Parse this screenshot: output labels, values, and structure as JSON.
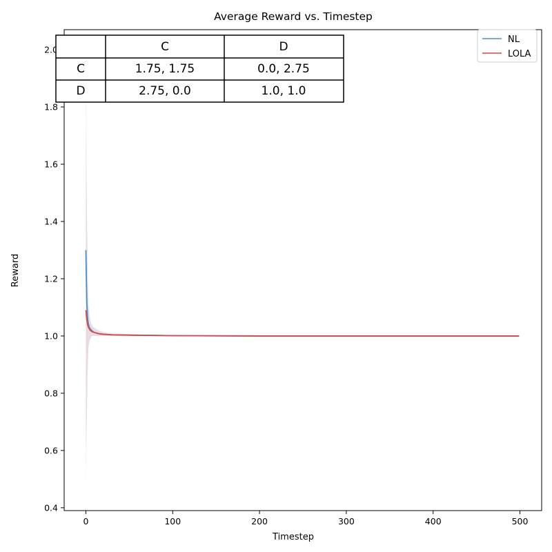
{
  "chart_data": {
    "type": "line",
    "title": "Average Reward vs. Timestep",
    "xlabel": "Timestep",
    "ylabel": "Reward",
    "xlim": [
      -25,
      525
    ],
    "ylim": [
      0.39,
      2.07
    ],
    "xticks": [
      0,
      100,
      200,
      300,
      400,
      500
    ],
    "yticks": [
      0.4,
      0.6,
      0.8,
      1.0,
      1.2,
      1.4,
      1.6,
      1.8,
      2.0
    ],
    "grid": false,
    "legend": {
      "position": "top-right",
      "entries": [
        "NL",
        "LOLA"
      ]
    },
    "series": [
      {
        "name": "NL",
        "color": "#4c8ec9",
        "x": [
          0,
          1,
          2,
          3,
          4,
          5,
          7,
          10,
          15,
          20,
          30,
          50,
          100,
          200,
          300,
          400,
          499
        ],
        "y": [
          1.3,
          1.12,
          1.06,
          1.04,
          1.03,
          1.025,
          1.018,
          1.012,
          1.008,
          1.006,
          1.004,
          1.003,
          1.001,
          1.0,
          1.0,
          1.0,
          1.0
        ],
        "band_upper": [
          2.0,
          1.55,
          1.25,
          1.12,
          1.08,
          1.06,
          1.04,
          1.03,
          1.02,
          1.015,
          1.01,
          1.006,
          1.003,
          1.001,
          1.001,
          1.001,
          1.001
        ],
        "band_lower": [
          0.6,
          0.7,
          0.87,
          0.96,
          0.98,
          0.99,
          1.0,
          1.0,
          1.0,
          1.0,
          1.0,
          1.0,
          1.0,
          0.999,
          0.999,
          0.999,
          0.999
        ]
      },
      {
        "name": "LOLA",
        "color": "#d9474a",
        "x": [
          0,
          1,
          2,
          3,
          4,
          5,
          7,
          10,
          15,
          20,
          30,
          50,
          100,
          200,
          300,
          400,
          499
        ],
        "y": [
          1.09,
          1.06,
          1.04,
          1.03,
          1.025,
          1.02,
          1.015,
          1.012,
          1.008,
          1.006,
          1.004,
          1.003,
          1.001,
          1.0,
          1.0,
          1.0,
          1.0
        ],
        "band_upper": [
          1.75,
          1.45,
          1.2,
          1.1,
          1.07,
          1.05,
          1.035,
          1.025,
          1.018,
          1.012,
          1.008,
          1.005,
          1.003,
          1.001,
          1.001,
          1.001,
          1.001
        ],
        "band_lower": [
          0.47,
          0.7,
          0.88,
          0.96,
          0.98,
          0.99,
          1.0,
          1.0,
          1.0,
          1.0,
          1.0,
          1.0,
          1.0,
          0.999,
          0.999,
          0.999,
          0.999
        ]
      }
    ],
    "payoff_table": {
      "header": [
        "",
        "C",
        "D"
      ],
      "rows": [
        [
          "C",
          "1.75, 1.75",
          "0.0, 2.75"
        ],
        [
          "D",
          "2.75, 0.0",
          "1.0, 1.0"
        ]
      ]
    }
  }
}
